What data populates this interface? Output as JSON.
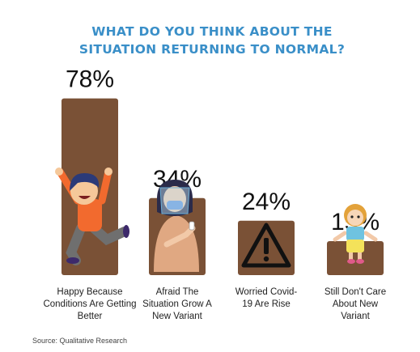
{
  "chart_data": {
    "type": "bar",
    "title_lines": [
      "WHAT DO YOU THINK ABOUT THE",
      "SITUATION RETURNING TO NORMAL?"
    ],
    "categories": [
      [
        "Happy Because",
        "Conditions Are Getting",
        "Better"
      ],
      [
        "Afraid The",
        "Situation Grow A",
        "New Variant"
      ],
      [
        "Worried Covid-",
        "19 Are Rise"
      ],
      [
        "Still Don't Care",
        "About New",
        "Variant"
      ]
    ],
    "values": [
      78,
      34,
      24,
      15
    ],
    "value_labels": [
      "78%",
      "34%",
      "24%",
      "15%"
    ],
    "ylim": [
      0,
      100
    ],
    "source": "Source: Qualitative Research",
    "bar_color": "#7a5136",
    "title_color": "#3a8fc8",
    "icons": [
      "happy-child-icon",
      "masked-woman-icon",
      "warning-sign-icon",
      "shrugging-girl-icon"
    ]
  }
}
